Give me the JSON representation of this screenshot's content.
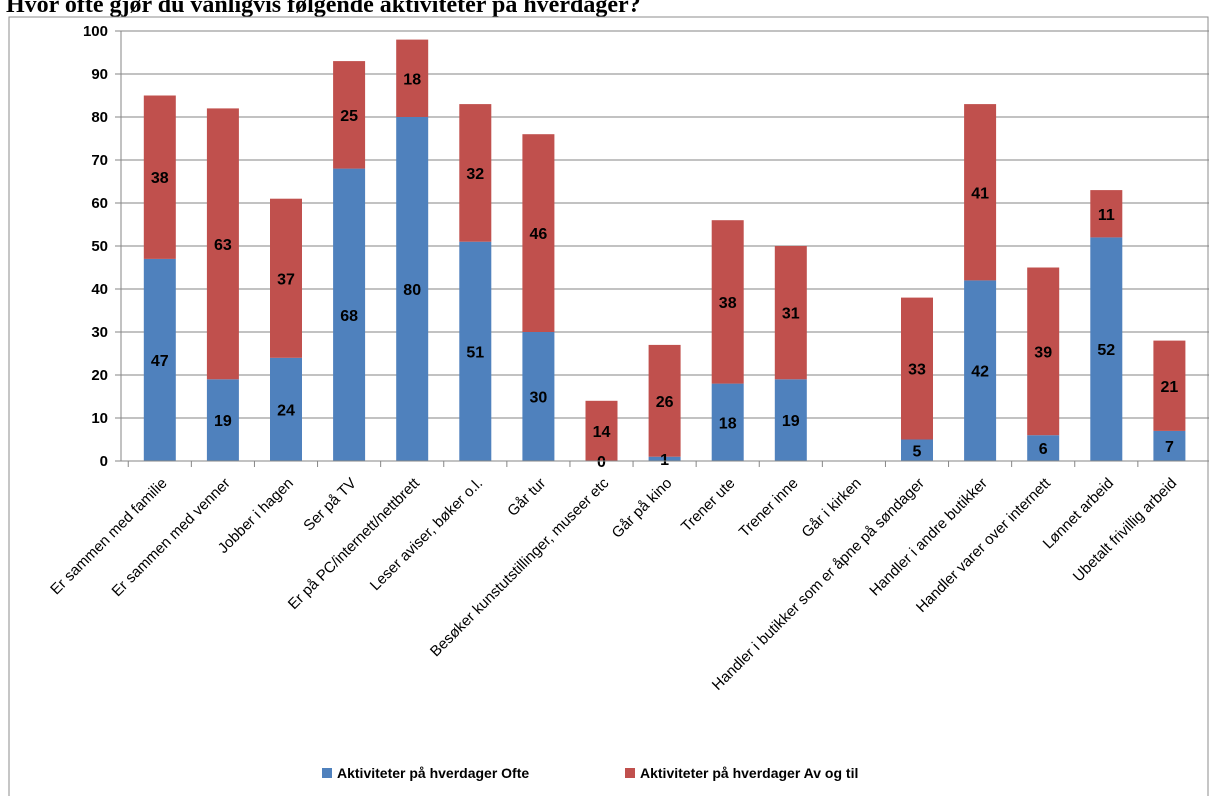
{
  "chart_data": {
    "type": "bar",
    "stacked": true,
    "title": "Hvor ofte gjør du vanligvis følgende aktiviteter på hverdager?",
    "categories": [
      "Er sammen med familie",
      "Er sammen med venner",
      "Jobber i hagen",
      "Ser på TV",
      "Er på PC/internett/nettbrett",
      "Leser aviser, bøker o.l.",
      "Går tur",
      "Besøker kunstutstillinger, museer etc",
      "Går på kino",
      "Trener ute",
      "Trener inne",
      "Går i kirken",
      "Handler i butikker som er åpne på søndager",
      "Handler i andre butikker",
      "Handler varer over internett",
      "Lønnet arbeid",
      "Ubetalt frivillig arbeid"
    ],
    "series": [
      {
        "name": "Aktiviteter på hverdager Ofte",
        "color": "#4f81bd",
        "values": [
          47,
          19,
          24,
          68,
          80,
          51,
          30,
          0,
          1,
          18,
          19,
          null,
          5,
          42,
          6,
          52,
          7
        ],
        "labels": [
          "47",
          "19",
          "24",
          "68",
          "80",
          "51",
          "30",
          "0",
          "1",
          "18",
          "19",
          "",
          "5",
          "42",
          "6",
          "52",
          "7"
        ]
      },
      {
        "name": "Aktiviteter på hverdager Av og til",
        "color": "#c0504d",
        "values": [
          38,
          63,
          37,
          25,
          18,
          32,
          46,
          14,
          26,
          38,
          31,
          null,
          33,
          41,
          39,
          11,
          21
        ],
        "labels": [
          "38",
          "63",
          "37",
          "25",
          "18",
          "32",
          "46",
          "14",
          "26",
          "38",
          "31",
          "",
          "33",
          "41",
          "39",
          "11",
          "21"
        ]
      }
    ],
    "ylim": [
      0,
      100
    ],
    "yticks": [
      "0",
      "10",
      "20",
      "30",
      "40",
      "50",
      "60",
      "70",
      "80",
      "90",
      "100"
    ],
    "grid": true,
    "legend_position": "bottom"
  }
}
